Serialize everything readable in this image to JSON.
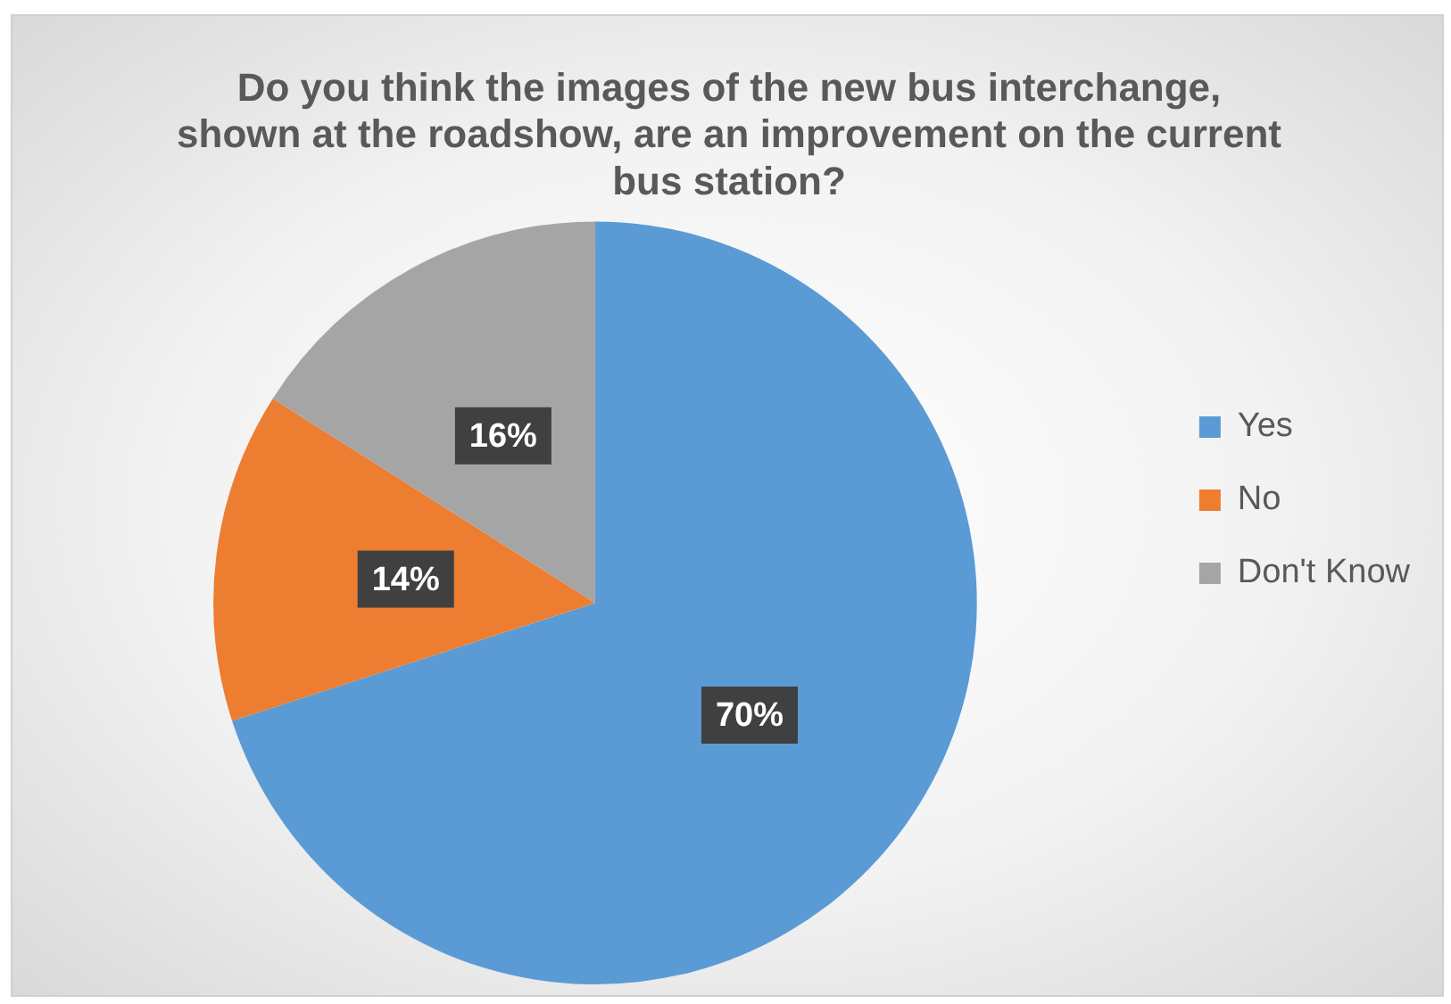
{
  "chart_data": {
    "type": "pie",
    "title": "Do you think the images of the new bus interchange, shown at the roadshow, are an improvement on the current bus station?",
    "categories": [
      "Yes",
      "No",
      "Don't Know"
    ],
    "values": [
      70,
      14,
      16
    ],
    "colors": [
      "#5b9bd5",
      "#ed7d31",
      "#a5a5a5"
    ],
    "value_labels": [
      "70%",
      "14%",
      "16%"
    ],
    "legend": "right"
  }
}
